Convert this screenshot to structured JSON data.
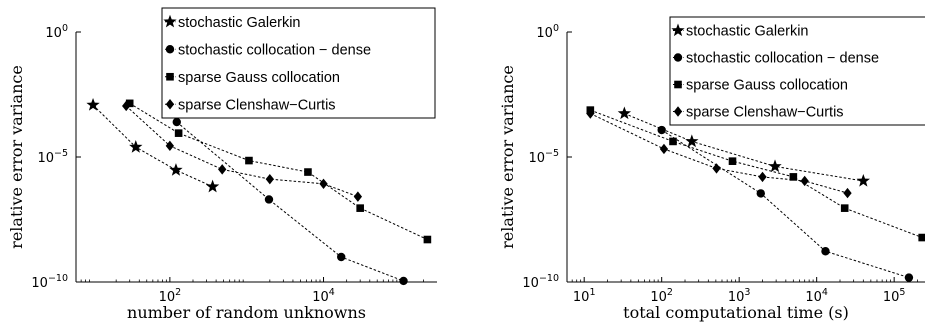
{
  "chart_data": [
    {
      "type": "line",
      "xlabel": "number of random unknowns",
      "ylabel": "relative error variance",
      "x_scale": "log",
      "y_scale": "log",
      "xlim": [
        6,
        300000
      ],
      "ylim": [
        1e-10,
        1
      ],
      "x_ticks": [
        {
          "value": 100,
          "label": "10",
          "exp": "2"
        },
        {
          "value": 10000,
          "label": "10",
          "exp": "4"
        }
      ],
      "y_ticks": [
        {
          "value": 1,
          "label": "10",
          "exp": "0"
        },
        {
          "value": 1e-05,
          "label": "10",
          "exp": "−5"
        },
        {
          "value": 1e-10,
          "label": "10",
          "exp": "−10"
        }
      ],
      "legend": {
        "position": "top-right",
        "entries": [
          "stochastic Galerkin",
          "stochastic collocation − dense",
          "sparse Gauss collocation",
          "sparse Clenshaw−Curtis"
        ]
      },
      "series": [
        {
          "name": "stochastic Galerkin",
          "marker": "star",
          "points": [
            [
              10,
              0.0012
            ],
            [
              36,
              2.5e-05
            ],
            [
              120,
              3e-06
            ],
            [
              360,
              6.5e-07
            ]
          ]
        },
        {
          "name": "stochastic collocation − dense",
          "marker": "circle",
          "points": [
            [
              123,
              0.00025
            ],
            [
              1950,
              2e-07
            ],
            [
              17000,
              1e-09
            ],
            [
              110000,
              1.1e-10
            ]
          ]
        },
        {
          "name": "sparse Gauss collocation",
          "marker": "square",
          "points": [
            [
              30,
              0.0014
            ],
            [
              130,
              9e-05
            ],
            [
              1070,
              7.2e-06
            ],
            [
              6270,
              2.5e-06
            ],
            [
              30000,
              9e-08
            ],
            [
              225000,
              5e-09
            ]
          ]
        },
        {
          "name": "sparse Clenshaw−Curtis",
          "marker": "diamond",
          "points": [
            [
              27,
              0.0011
            ],
            [
              100,
              2.8e-05
            ],
            [
              480,
              3.2e-06
            ],
            [
              2000,
              1.3e-06
            ],
            [
              10000,
              8.5e-07
            ],
            [
              28000,
              2.6e-07
            ]
          ]
        }
      ]
    },
    {
      "type": "line",
      "xlabel": "total computational time (s)",
      "ylabel": "relative error variance",
      "x_scale": "log",
      "y_scale": "log",
      "xlim": [
        6,
        250000
      ],
      "ylim": [
        1e-10,
        1
      ],
      "x_ticks": [
        {
          "value": 10,
          "label": "10",
          "exp": "1"
        },
        {
          "value": 100,
          "label": "10",
          "exp": "2"
        },
        {
          "value": 1000,
          "label": "10",
          "exp": "3"
        },
        {
          "value": 10000,
          "label": "10",
          "exp": "4"
        },
        {
          "value": 100000,
          "label": "10",
          "exp": "5"
        }
      ],
      "y_ticks": [
        {
          "value": 1,
          "label": "10",
          "exp": "0"
        },
        {
          "value": 1e-05,
          "label": "10",
          "exp": "−5"
        },
        {
          "value": 1e-10,
          "label": "10",
          "exp": "−10"
        }
      ],
      "legend": {
        "position": "top-right",
        "entries": [
          "stochastic Galerkin",
          "stochastic collocation − dense",
          "sparse Gauss collocation",
          "sparse Clenshaw−Curtis"
        ]
      },
      "series": [
        {
          "name": "stochastic Galerkin",
          "marker": "star",
          "points": [
            [
              33,
              0.00055
            ],
            [
              245,
              4.2e-05
            ],
            [
              2900,
              4.2e-06
            ],
            [
              40000,
              1.1e-06
            ]
          ]
        },
        {
          "name": "stochastic collocation − dense",
          "marker": "circle",
          "points": [
            [
              100,
              0.00012
            ],
            [
              1900,
              3.5e-07
            ],
            [
              13000,
              1.7e-09
            ],
            [
              155000,
              1.5e-10
            ]
          ]
        },
        {
          "name": "sparse Gauss collocation",
          "marker": "square",
          "points": [
            [
              12,
              0.00075
            ],
            [
              140,
              4.2e-05
            ],
            [
              820,
              6.8e-06
            ],
            [
              5000,
              1.6e-06
            ],
            [
              23000,
              9e-08
            ],
            [
              230000,
              6e-09
            ]
          ]
        },
        {
          "name": "sparse Clenshaw−Curtis",
          "marker": "diamond",
          "points": [
            [
              12,
              0.00055
            ],
            [
              107,
              2.1e-05
            ],
            [
              510,
              3.5e-06
            ],
            [
              2000,
              1.6e-06
            ],
            [
              7000,
              1.1e-06
            ],
            [
              25000,
              3.6e-07
            ]
          ]
        }
      ]
    }
  ]
}
